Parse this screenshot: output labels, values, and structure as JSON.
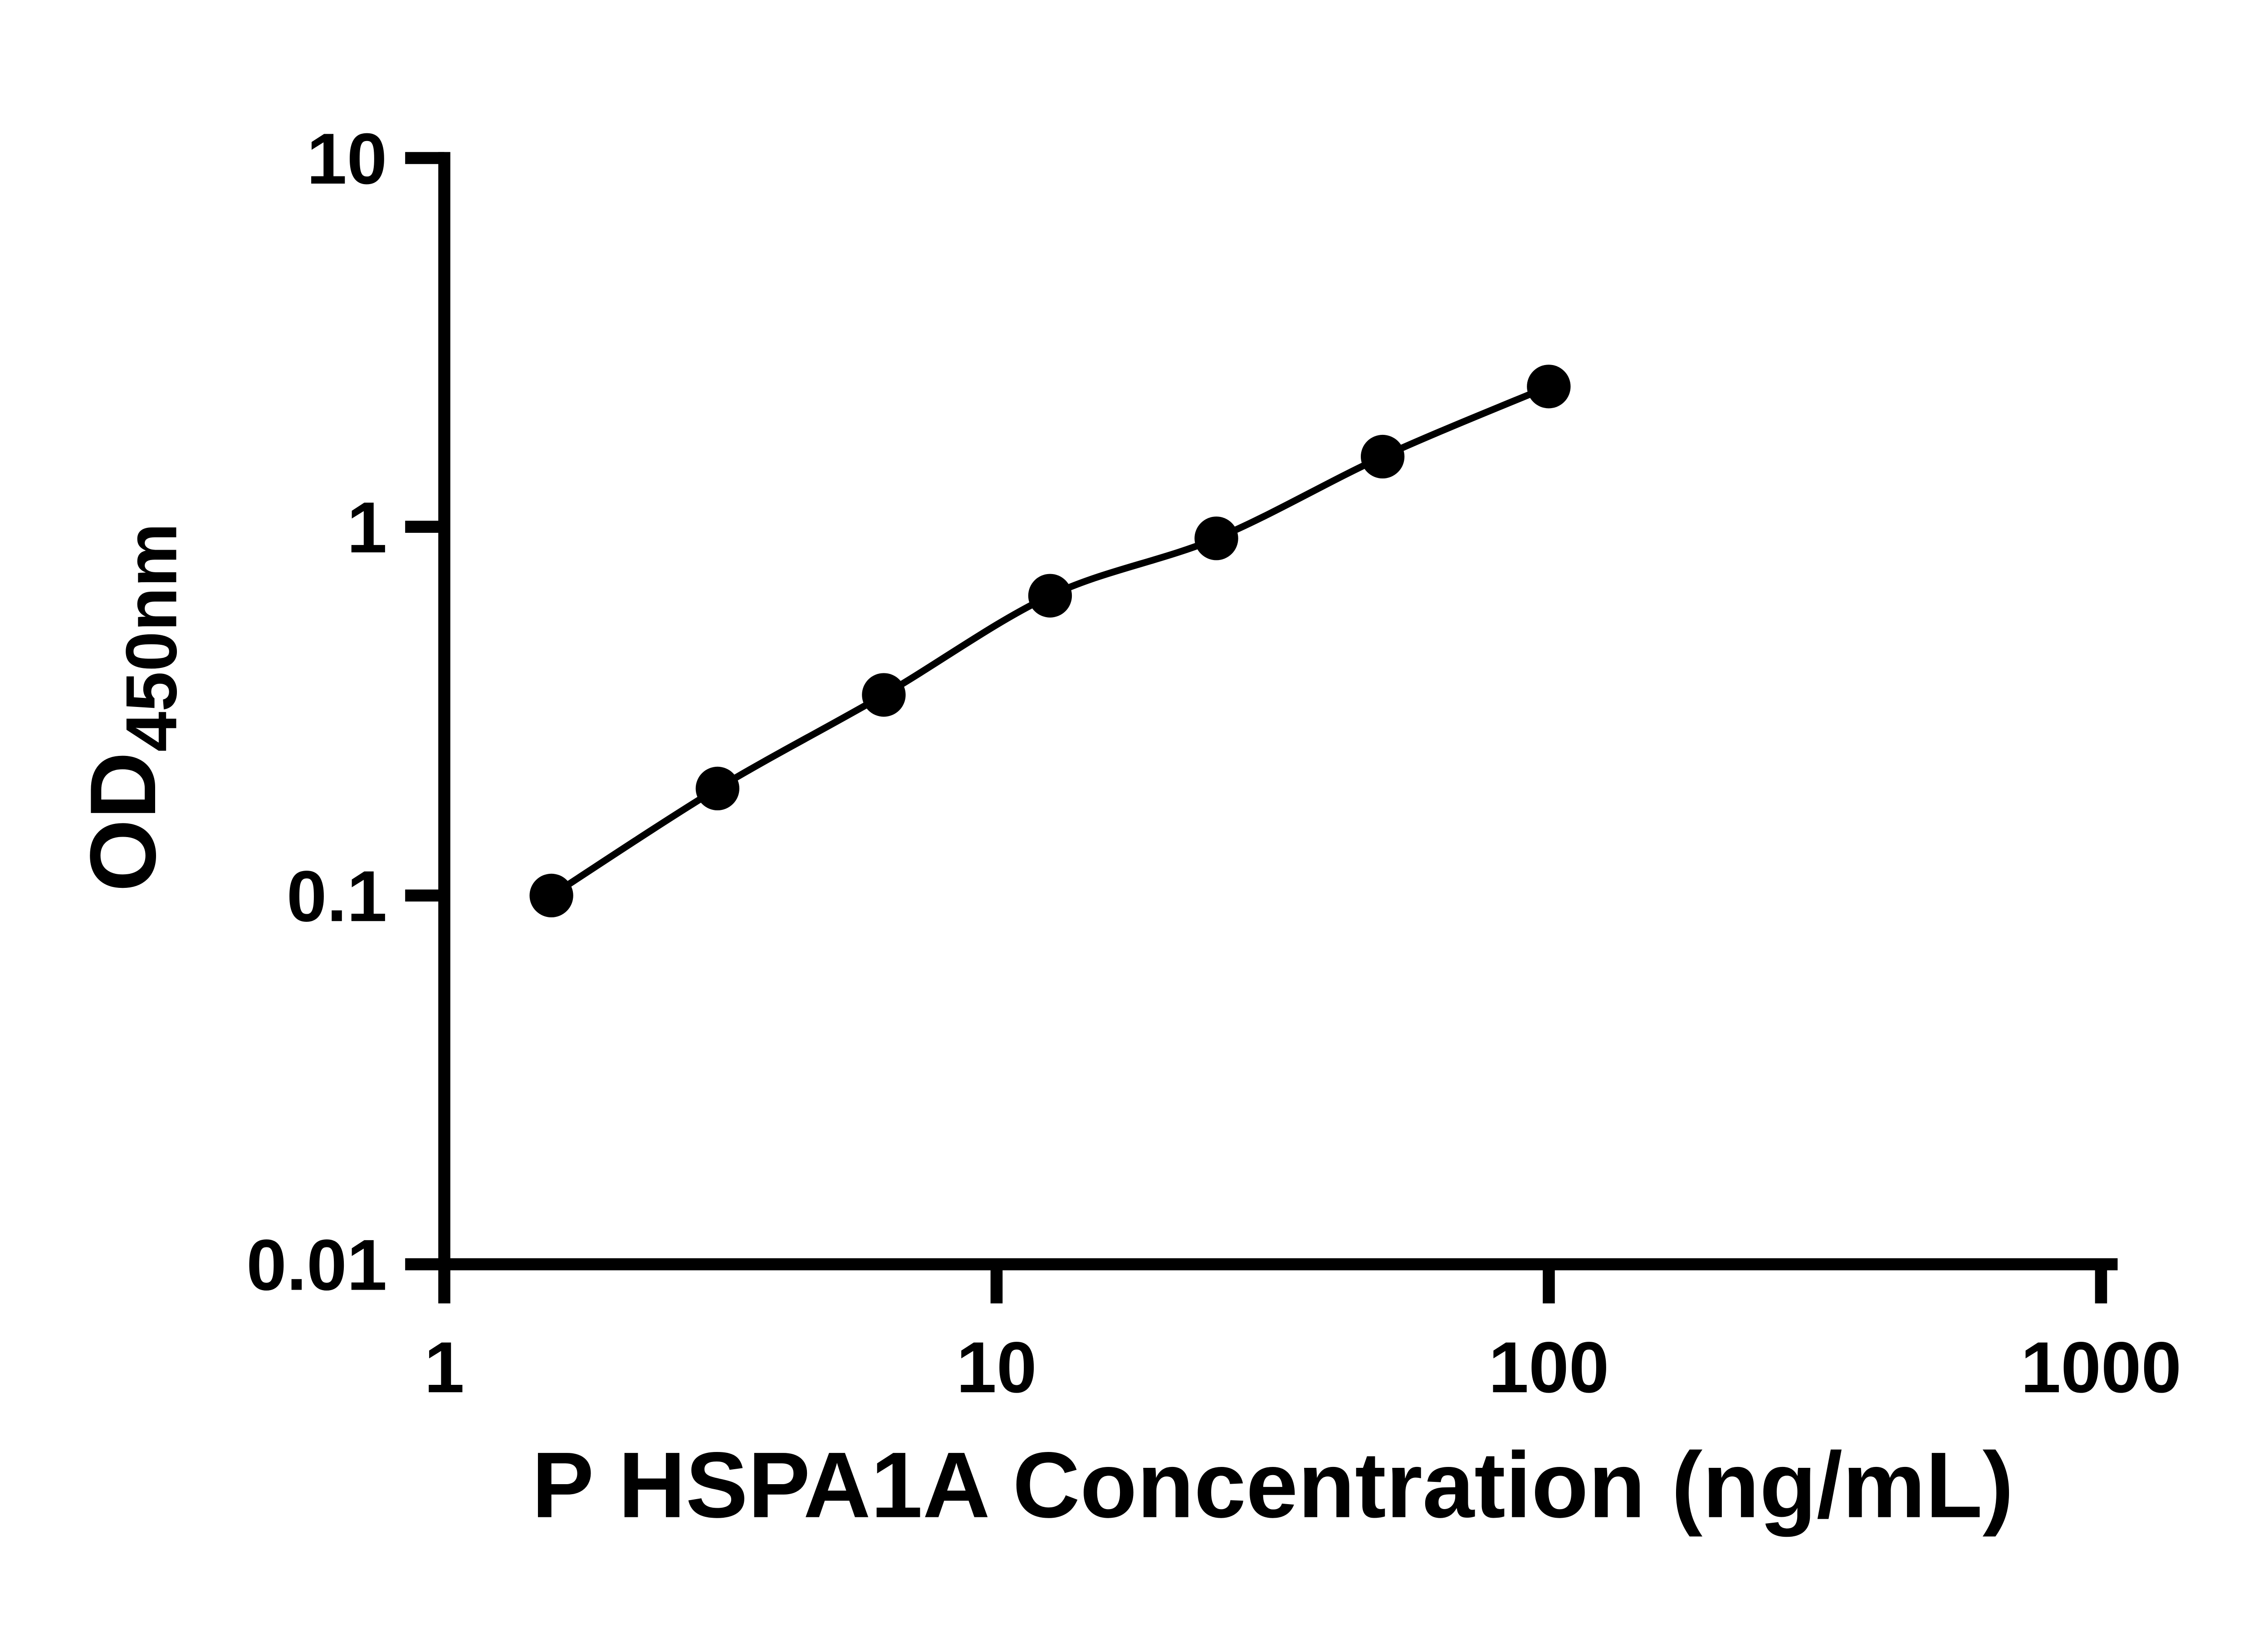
{
  "chart_data": {
    "type": "scatter",
    "title": "",
    "xlabel": "P HSPA1A Concentration (ng/mL)",
    "ylabel": "OD450nm",
    "ylabel_main": "OD",
    "ylabel_sub": "450nm",
    "x_scale": "log10",
    "y_scale": "log10",
    "xlim": [
      1,
      1000
    ],
    "ylim": [
      0.01,
      10
    ],
    "x_ticks": [
      "1",
      "10",
      "100",
      "1000"
    ],
    "y_ticks": [
      "0.01",
      "0.1",
      "1",
      "10"
    ],
    "grid": false,
    "legend": "none",
    "series": [
      {
        "marker": "filled-circle",
        "color": "#000000",
        "x": [
          1.5625,
          3.125,
          6.25,
          12.5,
          25,
          50,
          100
        ],
        "y": [
          0.1,
          0.195,
          0.35,
          0.65,
          0.93,
          1.55,
          2.4
        ]
      }
    ]
  },
  "colors": {
    "background": "#ffffff",
    "axis": "#000000",
    "text": "#000000",
    "curve": "#000000",
    "marker": "#000000"
  }
}
